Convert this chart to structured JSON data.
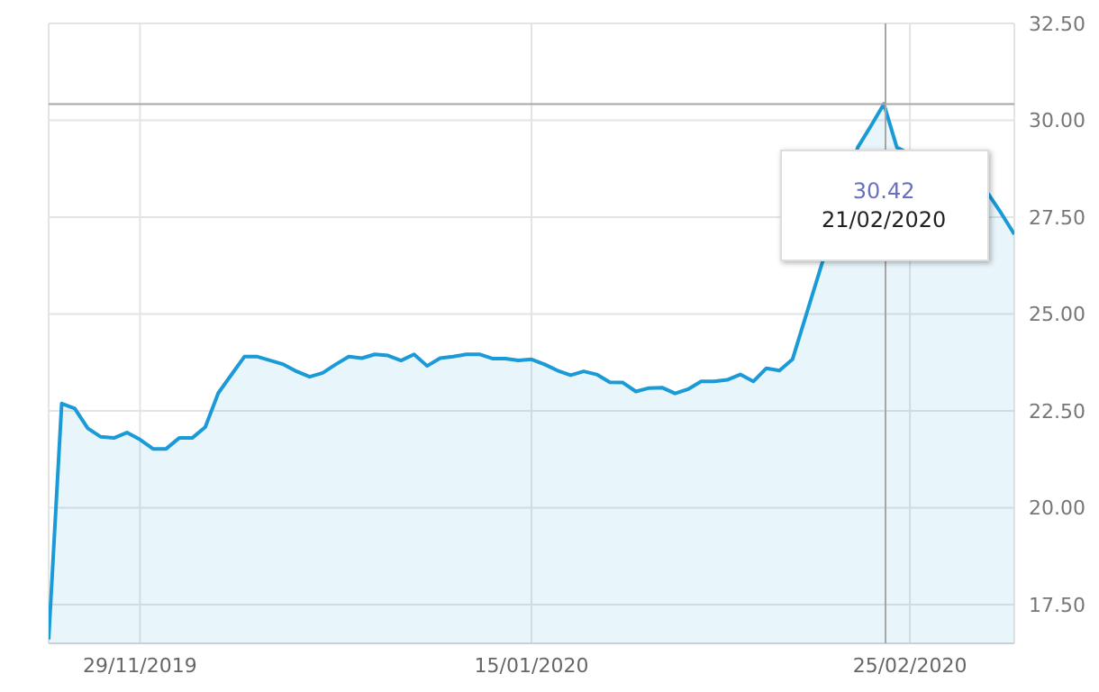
{
  "chart_data": {
    "type": "area",
    "categories": [
      null,
      null,
      null,
      null,
      null,
      null,
      null,
      "29/11/2019",
      null,
      null,
      null,
      null,
      null,
      null,
      null,
      null,
      null,
      null,
      null,
      null,
      null,
      null,
      null,
      null,
      null,
      null,
      null,
      null,
      null,
      null,
      null,
      null,
      null,
      null,
      null,
      null,
      null,
      "15/01/2020",
      null,
      null,
      null,
      null,
      null,
      null,
      null,
      null,
      null,
      null,
      null,
      null,
      null,
      null,
      null,
      null,
      null,
      null,
      null,
      null,
      null,
      null,
      null,
      null,
      null,
      null,
      null,
      null,
      "25/02/2020",
      null,
      null,
      null,
      null,
      null,
      null,
      null,
      null
    ],
    "series": [
      {
        "color": "#1a9ad6",
        "values": [
          16.6,
          22.69,
          22.56,
          22.05,
          21.83,
          21.8,
          21.94,
          21.76,
          21.52,
          21.52,
          21.8,
          21.8,
          22.08,
          22.96,
          23.43,
          23.9,
          23.9,
          23.8,
          23.7,
          23.52,
          23.38,
          23.48,
          23.7,
          23.9,
          23.86,
          23.96,
          23.93,
          23.8,
          23.96,
          23.66,
          23.86,
          23.9,
          23.96,
          23.96,
          23.85,
          23.85,
          23.8,
          23.83,
          23.7,
          23.54,
          23.42,
          23.52,
          23.44,
          23.24,
          23.23,
          23.0,
          23.09,
          23.1,
          22.95,
          23.06,
          23.26,
          23.26,
          23.3,
          23.44,
          23.26,
          23.6,
          23.54,
          23.83,
          null,
          null,
          null,
          null,
          29.3,
          29.85,
          30.42,
          29.3,
          null,
          null,
          null,
          null,
          null,
          null,
          28.1,
          27.6,
          27.06
        ]
      }
    ],
    "ylim": [
      16.5,
      32.5
    ],
    "yticks": [
      {
        "value": 17.5,
        "label": "17.50"
      },
      {
        "value": 20,
        "label": "20.00"
      },
      {
        "value": 22.5,
        "label": "22.50"
      },
      {
        "value": 25,
        "label": "25.00"
      },
      {
        "value": 27.5,
        "label": "27.50"
      },
      {
        "value": 30,
        "label": "30.00"
      },
      {
        "value": 32.5,
        "label": "32.50"
      }
    ],
    "grid": true,
    "ref_lines": [
      {
        "axis": "y",
        "value": 30.42,
        "color": "#a6a6a6"
      }
    ],
    "annotations": [
      "30.42",
      "21/02/2020"
    ]
  }
}
